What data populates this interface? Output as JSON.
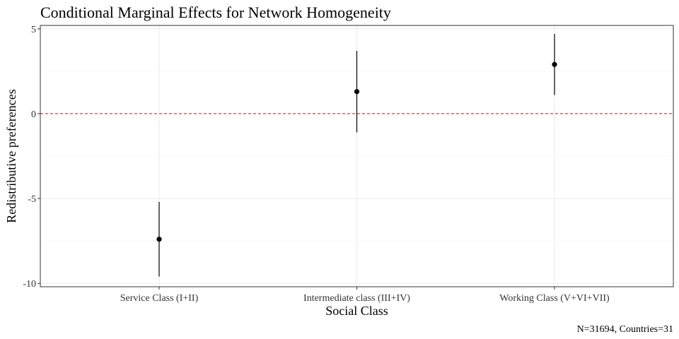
{
  "chart_data": {
    "type": "scatter",
    "title": "Conditional Marginal Effects for Network Homogeneity",
    "xlabel": "Social Class",
    "ylabel": "Redistributive preferences",
    "caption": "N=31694, Countries=31",
    "categories": [
      "Service Class (I+II)",
      "Intermediate class (III+IV)",
      "Working Class (V+VI+VII)"
    ],
    "values": [
      -7.4,
      1.3,
      2.9
    ],
    "lower": [
      -9.6,
      -1.1,
      1.1
    ],
    "upper": [
      -5.2,
      3.7,
      4.7
    ],
    "ylim": [
      -10.2,
      5.2
    ],
    "yticks": [
      -10,
      -5,
      0,
      5
    ],
    "ytick_labels": [
      "-10",
      "-5",
      "0",
      "5"
    ],
    "reference_line": 0,
    "grid": true,
    "colors": {
      "points": "#000000",
      "reference_line": "#b22222"
    }
  }
}
